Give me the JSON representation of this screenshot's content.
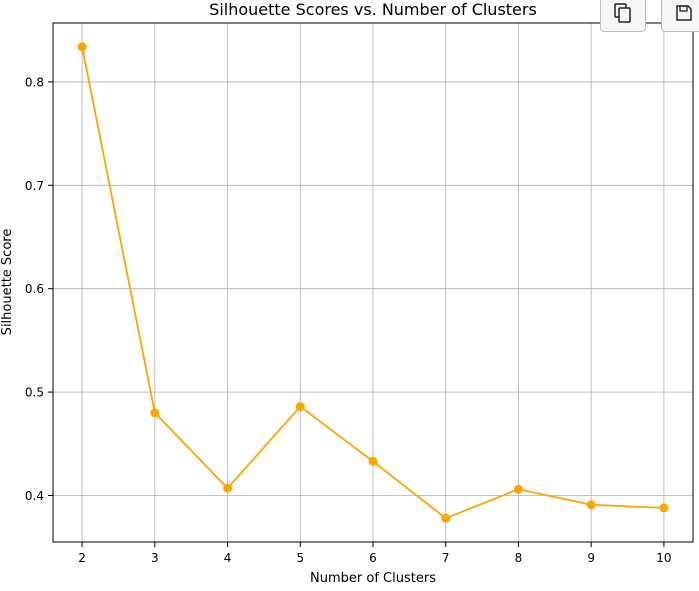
{
  "chart_data": {
    "type": "line",
    "title": "Silhouette Scores vs. Number of Clusters",
    "xlabel": "Number of Clusters",
    "ylabel": "Silhouette Score",
    "x": [
      2,
      3,
      4,
      5,
      6,
      7,
      8,
      9,
      10
    ],
    "series": [
      {
        "values": [
          0.834,
          0.48,
          0.407,
          0.486,
          0.433,
          0.378,
          0.406,
          0.391,
          0.388
        ]
      }
    ],
    "xticks": [
      "2",
      "3",
      "4",
      "5",
      "6",
      "7",
      "8",
      "9",
      "10"
    ],
    "yticks": [
      "0.4",
      "0.5",
      "0.6",
      "0.7",
      "0.8"
    ],
    "ytick_values": [
      0.4,
      0.5,
      0.6,
      0.7,
      0.8
    ],
    "xlim": [
      1.6,
      10.4
    ],
    "ylim": [
      0.355,
      0.857
    ],
    "grid": true,
    "color": "#ffa500"
  },
  "toolbar": {
    "copy_icon": "copy-icon",
    "save_icon": "save-icon"
  }
}
